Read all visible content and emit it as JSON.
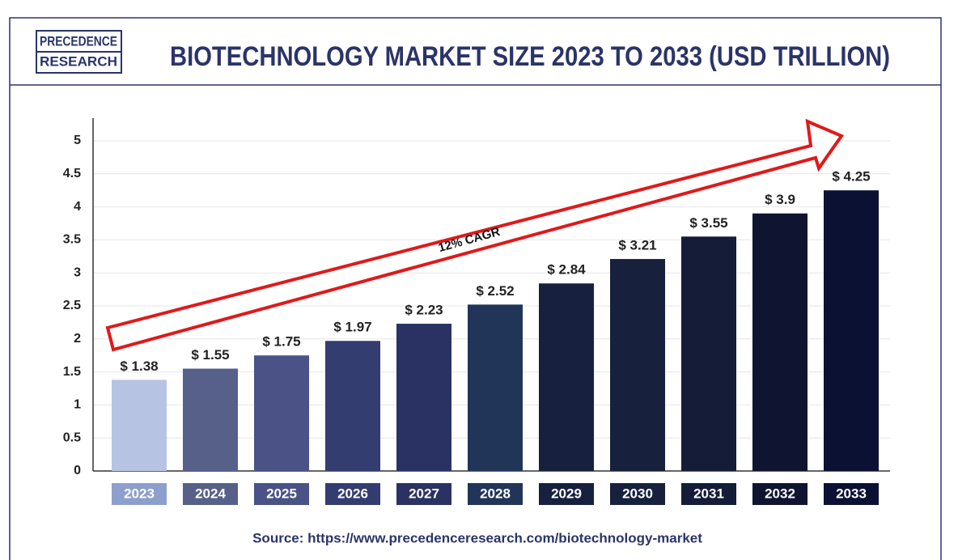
{
  "logo": {
    "line1": "PRECEDENCE",
    "line2": "RESEARCH"
  },
  "chart_data": {
    "type": "bar",
    "title": "BIOTECHNOLOGY MARKET SIZE 2023 TO 2033 (USD TRILLION)",
    "categories": [
      "2023",
      "2024",
      "2025",
      "2026",
      "2027",
      "2028",
      "2029",
      "2030",
      "2031",
      "2032",
      "2033"
    ],
    "values": [
      1.38,
      1.55,
      1.75,
      1.97,
      2.23,
      2.52,
      2.84,
      3.21,
      3.55,
      3.9,
      4.25
    ],
    "value_labels": [
      "$ 1.38",
      "$ 1.55",
      "$ 1.75",
      "$ 1.97",
      "$ 2.23",
      "$ 2.52",
      "$ 2.84",
      "$ 3.21",
      "$ 3.55",
      "$ 3.9",
      "$ 4.25"
    ],
    "colors": [
      "#b7c3e3",
      "#566089",
      "#4a5286",
      "#343d70",
      "#2a3264",
      "#213559",
      "#17213f",
      "#17213e",
      "#141c38",
      "#0f1530",
      "#0b1133"
    ],
    "category_box_colors": [
      "#8d9fcc",
      "#566089",
      "#4a5286",
      "#343d70",
      "#2a3264",
      "#213559",
      "#17213f",
      "#17213e",
      "#141c38",
      "#0f1530",
      "#0b1133"
    ],
    "ylim": [
      0,
      5
    ],
    "yticks": [
      0,
      0.5,
      1,
      1.5,
      2,
      2.5,
      3,
      3.5,
      4,
      4.5,
      5
    ],
    "grid": true,
    "annotation": "12% CAGR",
    "source": "Source: https://www.precedenceresearch.com/biotechnology-market"
  }
}
